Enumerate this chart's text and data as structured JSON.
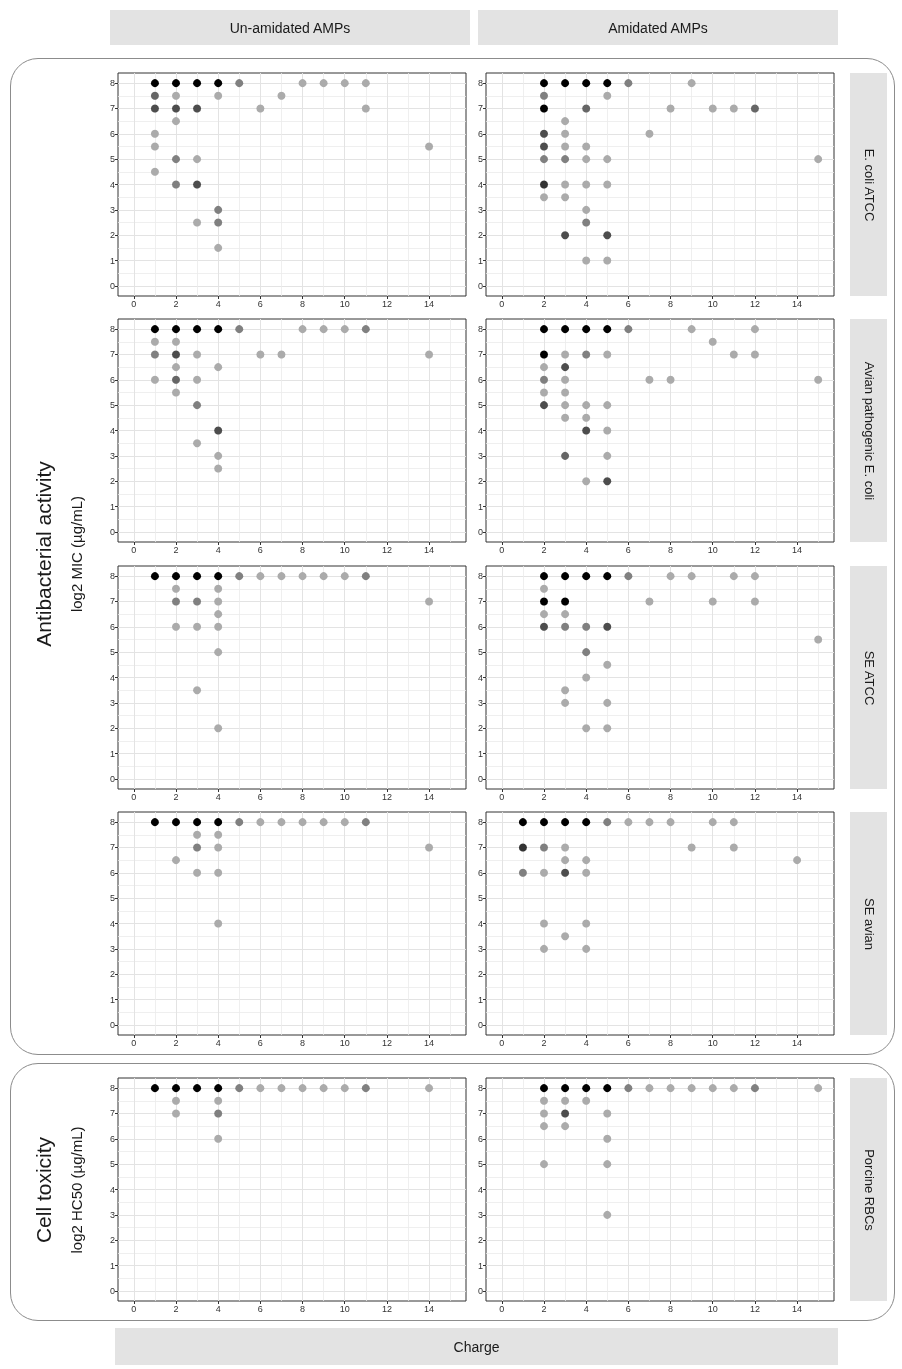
{
  "chart_data": [
    {
      "type": "scatter",
      "title": "Un-amidated AMPs",
      "annotations": [
        "Antibacterial activity",
        "log2 MIC (µg/mL)"
      ],
      "x": [
        1,
        2,
        3,
        4,
        5,
        8,
        9,
        10,
        11,
        1,
        2,
        4,
        7,
        1,
        2,
        3,
        6,
        11,
        2,
        1,
        1,
        14,
        2,
        3,
        1,
        2,
        3,
        4,
        3,
        4,
        4
      ],
      "values": [
        8,
        8,
        8,
        8,
        8,
        8,
        8,
        8,
        8,
        7.5,
        7.5,
        7.5,
        7.5,
        7,
        7,
        7,
        7,
        7,
        6.5,
        6,
        5.5,
        5.5,
        5,
        5,
        4.5,
        4,
        4,
        3,
        2.5,
        2.5,
        1.5
      ],
      "colors": [
        "#000000",
        "#000000",
        "#000000",
        "#000000",
        "#808080",
        "#ababab",
        "#ababab",
        "#ababab",
        "#ababab",
        "#666666",
        "#ababab",
        "#ababab",
        "#ababab",
        "#4d4d4d",
        "#4d4d4d",
        "#4d4d4d",
        "#ababab",
        "#ababab",
        "#ababab",
        "#ababab",
        "#ababab",
        "#ababab",
        "#808080",
        "#ababab",
        "#ababab",
        "#808080",
        "#4d4d4d",
        "#808080",
        "#ababab",
        "#808080",
        "#ababab"
      ],
      "marker": "circle",
      "xlim": [
        -0.75,
        15.75
      ],
      "xticks": [
        0,
        2,
        4,
        6,
        8,
        10,
        12,
        14
      ],
      "ylim": [
        -0.4,
        8.4
      ],
      "yticks": [
        0,
        1,
        2,
        3,
        4,
        5,
        6,
        7,
        8
      ],
      "grid": true
    },
    {
      "type": "scatter",
      "title": "Amidated AMPs",
      "annotations": [
        "E. coli ATCC"
      ],
      "x": [
        2,
        3,
        4,
        5,
        6,
        9,
        2,
        5,
        2,
        4,
        8,
        10,
        11,
        12,
        3,
        2,
        3,
        7,
        2,
        3,
        4,
        2,
        3,
        4,
        5,
        15,
        2,
        3,
        4,
        5,
        2,
        3,
        4,
        4,
        3,
        5,
        4,
        5
      ],
      "values": [
        8,
        8,
        8,
        8,
        8,
        8,
        7.5,
        7.5,
        7,
        7,
        7,
        7,
        7,
        7,
        6.5,
        6,
        6,
        6,
        5.5,
        5.5,
        5.5,
        5,
        5,
        5,
        5,
        5,
        4,
        4,
        4,
        4,
        3.5,
        3.5,
        3,
        2.5,
        2,
        2,
        1,
        1
      ],
      "colors": [
        "#000000",
        "#000000",
        "#000000",
        "#000000",
        "#808080",
        "#ababab",
        "#808080",
        "#ababab",
        "#000000",
        "#666666",
        "#ababab",
        "#ababab",
        "#ababab",
        "#666666",
        "#ababab",
        "#4d4d4d",
        "#ababab",
        "#ababab",
        "#4d4d4d",
        "#ababab",
        "#ababab",
        "#808080",
        "#808080",
        "#ababab",
        "#ababab",
        "#ababab",
        "#333333",
        "#ababab",
        "#ababab",
        "#ababab",
        "#ababab",
        "#ababab",
        "#ababab",
        "#808080",
        "#4d4d4d",
        "#4d4d4d",
        "#ababab",
        "#ababab"
      ],
      "marker": "circle",
      "xlim": [
        -0.75,
        15.75
      ],
      "xticks": [
        0,
        2,
        4,
        6,
        8,
        10,
        12,
        14
      ],
      "ylim": [
        -0.4,
        8.4
      ],
      "yticks": [
        0,
        1,
        2,
        3,
        4,
        5,
        6,
        7,
        8
      ],
      "grid": true
    },
    {
      "type": "scatter",
      "x": [
        1,
        2,
        3,
        4,
        5,
        8,
        9,
        10,
        11,
        1,
        2,
        1,
        2,
        3,
        6,
        7,
        14,
        2,
        4,
        1,
        2,
        3,
        2,
        3,
        4,
        3,
        4,
        4
      ],
      "values": [
        8,
        8,
        8,
        8,
        8,
        8,
        8,
        8,
        8,
        7.5,
        7.5,
        7,
        7,
        7,
        7,
        7,
        7,
        6.5,
        6.5,
        6,
        6,
        6,
        5.5,
        5,
        4,
        3.5,
        3,
        2.5
      ],
      "colors": [
        "#000000",
        "#000000",
        "#000000",
        "#000000",
        "#808080",
        "#ababab",
        "#ababab",
        "#ababab",
        "#808080",
        "#ababab",
        "#ababab",
        "#808080",
        "#4d4d4d",
        "#ababab",
        "#ababab",
        "#ababab",
        "#ababab",
        "#ababab",
        "#ababab",
        "#ababab",
        "#666666",
        "#ababab",
        "#ababab",
        "#808080",
        "#4d4d4d",
        "#ababab",
        "#ababab",
        "#ababab"
      ],
      "marker": "circle",
      "xlim": [
        -0.75,
        15.75
      ],
      "xticks": [
        0,
        2,
        4,
        6,
        8,
        10,
        12,
        14
      ],
      "ylim": [
        -0.4,
        8.4
      ],
      "yticks": [
        0,
        1,
        2,
        3,
        4,
        5,
        6,
        7,
        8
      ],
      "grid": true
    },
    {
      "type": "scatter",
      "annotations": [
        "Avian pathogenic E. coli"
      ],
      "x": [
        2,
        3,
        4,
        5,
        6,
        9,
        12,
        10,
        2,
        3,
        4,
        5,
        11,
        12,
        2,
        3,
        2,
        3,
        7,
        8,
        15,
        2,
        3,
        2,
        3,
        4,
        5,
        3,
        4,
        4,
        5,
        3,
        5,
        4,
        5
      ],
      "values": [
        8,
        8,
        8,
        8,
        8,
        8,
        8,
        7.5,
        7,
        7,
        7,
        7,
        7,
        7,
        6.5,
        6.5,
        6,
        6,
        6,
        6,
        6,
        5.5,
        5.5,
        5,
        5,
        5,
        5,
        4.5,
        4.5,
        4,
        4,
        3,
        3,
        2,
        2
      ],
      "colors": [
        "#000000",
        "#000000",
        "#000000",
        "#000000",
        "#808080",
        "#ababab",
        "#ababab",
        "#ababab",
        "#000000",
        "#ababab",
        "#808080",
        "#ababab",
        "#ababab",
        "#ababab",
        "#ababab",
        "#4d4d4d",
        "#808080",
        "#ababab",
        "#ababab",
        "#ababab",
        "#ababab",
        "#ababab",
        "#ababab",
        "#4d4d4d",
        "#ababab",
        "#ababab",
        "#ababab",
        "#ababab",
        "#ababab",
        "#4d4d4d",
        "#ababab",
        "#666666",
        "#ababab",
        "#ababab",
        "#4d4d4d"
      ],
      "marker": "circle",
      "xlim": [
        -0.75,
        15.75
      ],
      "xticks": [
        0,
        2,
        4,
        6,
        8,
        10,
        12,
        14
      ],
      "ylim": [
        -0.4,
        8.4
      ],
      "yticks": [
        0,
        1,
        2,
        3,
        4,
        5,
        6,
        7,
        8
      ],
      "grid": true
    },
    {
      "type": "scatter",
      "x": [
        1,
        2,
        3,
        4,
        5,
        6,
        7,
        8,
        9,
        10,
        11,
        2,
        4,
        2,
        3,
        4,
        14,
        4,
        2,
        3,
        4,
        4,
        3,
        4
      ],
      "values": [
        8,
        8,
        8,
        8,
        8,
        8,
        8,
        8,
        8,
        8,
        8,
        7.5,
        7.5,
        7,
        7,
        7,
        7,
        6.5,
        6,
        6,
        6,
        5,
        3.5,
        2
      ],
      "colors": [
        "#000000",
        "#000000",
        "#000000",
        "#000000",
        "#808080",
        "#ababab",
        "#ababab",
        "#ababab",
        "#ababab",
        "#ababab",
        "#808080",
        "#ababab",
        "#ababab",
        "#808080",
        "#808080",
        "#ababab",
        "#ababab",
        "#ababab",
        "#ababab",
        "#ababab",
        "#ababab",
        "#ababab",
        "#ababab",
        "#ababab"
      ],
      "marker": "circle",
      "xlim": [
        -0.75,
        15.75
      ],
      "xticks": [
        0,
        2,
        4,
        6,
        8,
        10,
        12,
        14
      ],
      "ylim": [
        -0.4,
        8.4
      ],
      "yticks": [
        0,
        1,
        2,
        3,
        4,
        5,
        6,
        7,
        8
      ],
      "grid": true
    },
    {
      "type": "scatter",
      "annotations": [
        "SE ATCC"
      ],
      "x": [
        2,
        3,
        4,
        5,
        6,
        8,
        9,
        11,
        12,
        2,
        2,
        3,
        7,
        10,
        12,
        2,
        3,
        2,
        3,
        4,
        5,
        15,
        4,
        5,
        4,
        3,
        3,
        5,
        4,
        5
      ],
      "values": [
        8,
        8,
        8,
        8,
        8,
        8,
        8,
        8,
        8,
        7.5,
        7,
        7,
        7,
        7,
        7,
        6.5,
        6.5,
        6,
        6,
        6,
        6,
        5.5,
        5,
        4.5,
        4,
        3.5,
        3,
        3,
        2,
        2
      ],
      "colors": [
        "#000000",
        "#000000",
        "#000000",
        "#000000",
        "#808080",
        "#ababab",
        "#ababab",
        "#ababab",
        "#ababab",
        "#ababab",
        "#000000",
        "#000000",
        "#ababab",
        "#ababab",
        "#ababab",
        "#ababab",
        "#ababab",
        "#4d4d4d",
        "#808080",
        "#808080",
        "#4d4d4d",
        "#ababab",
        "#808080",
        "#ababab",
        "#ababab",
        "#ababab",
        "#ababab",
        "#ababab",
        "#ababab",
        "#ababab"
      ],
      "marker": "circle",
      "xlim": [
        -0.75,
        15.75
      ],
      "xticks": [
        0,
        2,
        4,
        6,
        8,
        10,
        12,
        14
      ],
      "ylim": [
        -0.4,
        8.4
      ],
      "yticks": [
        0,
        1,
        2,
        3,
        4,
        5,
        6,
        7,
        8
      ],
      "grid": true
    },
    {
      "type": "scatter",
      "x": [
        1,
        2,
        3,
        4,
        5,
        6,
        7,
        8,
        9,
        10,
        11,
        3,
        4,
        3,
        4,
        14,
        2,
        3,
        4,
        4
      ],
      "values": [
        8,
        8,
        8,
        8,
        8,
        8,
        8,
        8,
        8,
        8,
        8,
        7.5,
        7.5,
        7,
        7,
        7,
        6.5,
        6,
        6,
        4
      ],
      "colors": [
        "#000000",
        "#000000",
        "#000000",
        "#000000",
        "#808080",
        "#ababab",
        "#ababab",
        "#ababab",
        "#ababab",
        "#ababab",
        "#808080",
        "#ababab",
        "#ababab",
        "#808080",
        "#ababab",
        "#ababab",
        "#ababab",
        "#ababab",
        "#ababab",
        "#ababab"
      ],
      "marker": "circle",
      "xlim": [
        -0.75,
        15.75
      ],
      "xticks": [
        0,
        2,
        4,
        6,
        8,
        10,
        12,
        14
      ],
      "ylim": [
        -0.4,
        8.4
      ],
      "yticks": [
        0,
        1,
        2,
        3,
        4,
        5,
        6,
        7,
        8
      ],
      "grid": true
    },
    {
      "type": "scatter",
      "annotations": [
        "SE avian"
      ],
      "x": [
        1,
        2,
        3,
        4,
        5,
        6,
        7,
        8,
        10,
        11,
        1,
        2,
        3,
        9,
        11,
        3,
        4,
        14,
        1,
        2,
        3,
        4,
        2,
        4,
        3,
        2,
        4
      ],
      "values": [
        8,
        8,
        8,
        8,
        8,
        8,
        8,
        8,
        8,
        8,
        7,
        7,
        7,
        7,
        7,
        6.5,
        6.5,
        6.5,
        6,
        6,
        6,
        6,
        4,
        4,
        3.5,
        3,
        3
      ],
      "colors": [
        "#000000",
        "#000000",
        "#000000",
        "#000000",
        "#808080",
        "#ababab",
        "#ababab",
        "#ababab",
        "#ababab",
        "#ababab",
        "#333333",
        "#808080",
        "#ababab",
        "#ababab",
        "#ababab",
        "#ababab",
        "#ababab",
        "#ababab",
        "#808080",
        "#ababab",
        "#4d4d4d",
        "#ababab",
        "#ababab",
        "#ababab",
        "#ababab",
        "#ababab",
        "#ababab"
      ],
      "marker": "circle",
      "xlim": [
        -0.75,
        15.75
      ],
      "xticks": [
        0,
        2,
        4,
        6,
        8,
        10,
        12,
        14
      ],
      "ylim": [
        -0.4,
        8.4
      ],
      "yticks": [
        0,
        1,
        2,
        3,
        4,
        5,
        6,
        7,
        8
      ],
      "grid": true
    },
    {
      "type": "scatter",
      "xlabel": "Charge",
      "annotations": [
        "Cell toxicity",
        "log2 HC50 (µg/mL)"
      ],
      "x": [
        1,
        2,
        3,
        4,
        5,
        6,
        7,
        8,
        9,
        10,
        11,
        14,
        2,
        4,
        2,
        4,
        4
      ],
      "values": [
        8,
        8,
        8,
        8,
        8,
        8,
        8,
        8,
        8,
        8,
        8,
        8,
        7.5,
        7.5,
        7,
        7,
        6
      ],
      "colors": [
        "#000000",
        "#000000",
        "#000000",
        "#000000",
        "#808080",
        "#ababab",
        "#ababab",
        "#ababab",
        "#ababab",
        "#ababab",
        "#808080",
        "#ababab",
        "#ababab",
        "#ababab",
        "#ababab",
        "#808080",
        "#ababab"
      ],
      "marker": "circle",
      "xlim": [
        -0.75,
        15.75
      ],
      "xticks": [
        0,
        2,
        4,
        6,
        8,
        10,
        12,
        14
      ],
      "ylim": [
        -0.4,
        8.4
      ],
      "yticks": [
        0,
        1,
        2,
        3,
        4,
        5,
        6,
        7,
        8
      ],
      "grid": true
    },
    {
      "type": "scatter",
      "annotations": [
        "Porcine RBCs"
      ],
      "x": [
        2,
        3,
        4,
        5,
        6,
        7,
        8,
        9,
        10,
        11,
        12,
        15,
        2,
        3,
        4,
        2,
        3,
        5,
        2,
        3,
        5,
        2,
        5,
        5
      ],
      "values": [
        8,
        8,
        8,
        8,
        8,
        8,
        8,
        8,
        8,
        8,
        8,
        8,
        7.5,
        7.5,
        7.5,
        7,
        7,
        7,
        6.5,
        6.5,
        6,
        5,
        5,
        3
      ],
      "colors": [
        "#000000",
        "#000000",
        "#000000",
        "#000000",
        "#808080",
        "#ababab",
        "#ababab",
        "#ababab",
        "#ababab",
        "#ababab",
        "#808080",
        "#ababab",
        "#ababab",
        "#ababab",
        "#ababab",
        "#ababab",
        "#4d4d4d",
        "#ababab",
        "#ababab",
        "#ababab",
        "#ababab",
        "#ababab",
        "#ababab",
        "#ababab"
      ],
      "marker": "circle",
      "xlim": [
        -0.75,
        15.75
      ],
      "xticks": [
        0,
        2,
        4,
        6,
        8,
        10,
        12,
        14
      ],
      "ylim": [
        -0.4,
        8.4
      ],
      "yticks": [
        0,
        1,
        2,
        3,
        4,
        5,
        6,
        7,
        8
      ],
      "grid": true
    }
  ]
}
